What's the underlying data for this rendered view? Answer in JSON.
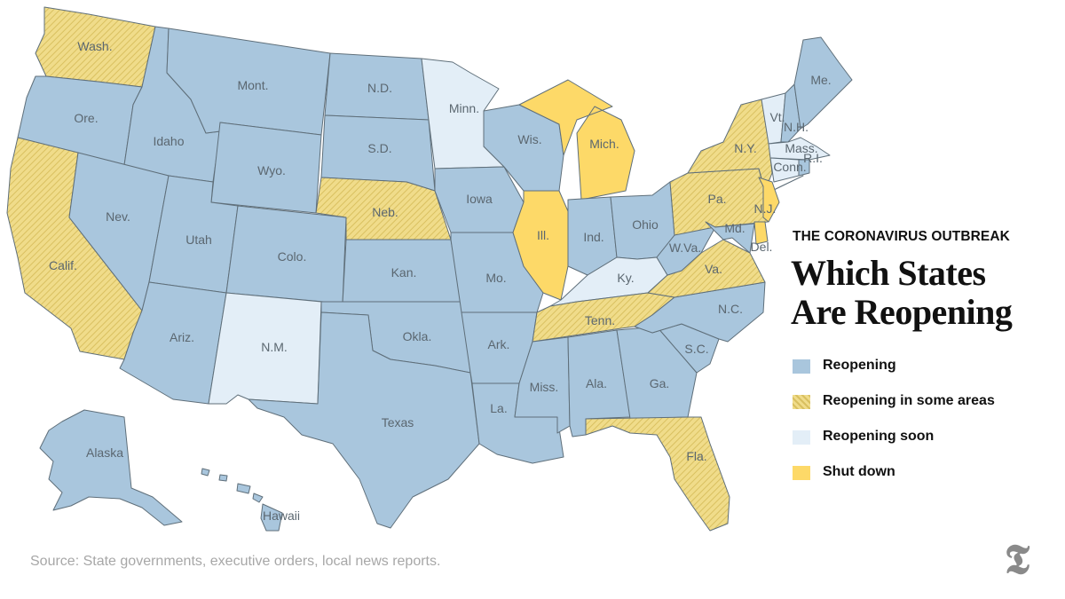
{
  "header": {
    "kicker": "THE CORONAVIRUS OUTBREAK",
    "title_line1": "Which States",
    "title_line2": "Are Reopening"
  },
  "legend": {
    "reopening": "Reopening",
    "some": "Reopening in some areas",
    "soon": "Reopening soon",
    "shut": "Shut down"
  },
  "colors": {
    "reopening": "#a9c6dd",
    "some": "#f0dc8a",
    "some_hatch": "#d9c060",
    "soon": "#e3eef7",
    "shut": "#fdd968",
    "border": "#5f6f7a"
  },
  "states": {
    "wa": {
      "label": "Wash.",
      "status": "some"
    },
    "or": {
      "label": "Ore.",
      "status": "reopening"
    },
    "ca": {
      "label": "Calif.",
      "status": "some"
    },
    "id": {
      "label": "Idaho",
      "status": "reopening"
    },
    "nv": {
      "label": "Nev.",
      "status": "reopening"
    },
    "mt": {
      "label": "Mont.",
      "status": "reopening"
    },
    "wy": {
      "label": "Wyo.",
      "status": "reopening"
    },
    "ut": {
      "label": "Utah",
      "status": "reopening"
    },
    "az": {
      "label": "Ariz.",
      "status": "reopening"
    },
    "co": {
      "label": "Colo.",
      "status": "reopening"
    },
    "nm": {
      "label": "N.M.",
      "status": "soon"
    },
    "nd": {
      "label": "N.D.",
      "status": "reopening"
    },
    "sd": {
      "label": "S.D.",
      "status": "reopening"
    },
    "ne": {
      "label": "Neb.",
      "status": "some"
    },
    "ks": {
      "label": "Kan.",
      "status": "reopening"
    },
    "ok": {
      "label": "Okla.",
      "status": "reopening"
    },
    "tx": {
      "label": "Texas",
      "status": "reopening"
    },
    "mn": {
      "label": "Minn.",
      "status": "soon"
    },
    "ia": {
      "label": "Iowa",
      "status": "reopening"
    },
    "mo": {
      "label": "Mo.",
      "status": "reopening"
    },
    "ar": {
      "label": "Ark.",
      "status": "reopening"
    },
    "la": {
      "label": "La.",
      "status": "reopening"
    },
    "wi": {
      "label": "Wis.",
      "status": "reopening"
    },
    "il": {
      "label": "Ill.",
      "status": "shut"
    },
    "mi": {
      "label": "Mich.",
      "status": "shut"
    },
    "in": {
      "label": "Ind.",
      "status": "reopening"
    },
    "oh": {
      "label": "Ohio",
      "status": "reopening"
    },
    "ky": {
      "label": "Ky.",
      "status": "soon"
    },
    "tn": {
      "label": "Tenn.",
      "status": "some"
    },
    "ms": {
      "label": "Miss.",
      "status": "reopening"
    },
    "al": {
      "label": "Ala.",
      "status": "reopening"
    },
    "ga": {
      "label": "Ga.",
      "status": "reopening"
    },
    "fl": {
      "label": "Fla.",
      "status": "some"
    },
    "sc": {
      "label": "S.C.",
      "status": "reopening"
    },
    "nc": {
      "label": "N.C.",
      "status": "reopening"
    },
    "va": {
      "label": "Va.",
      "status": "some"
    },
    "wv": {
      "label": "W.Va.",
      "status": "reopening"
    },
    "pa": {
      "label": "Pa.",
      "status": "some"
    },
    "ny": {
      "label": "N.Y.",
      "status": "some"
    },
    "nj": {
      "label": "N.J.",
      "status": "shut"
    },
    "md": {
      "label": "Md.",
      "status": "reopening"
    },
    "de": {
      "label": "Del.",
      "status": "shut"
    },
    "me": {
      "label": "Me.",
      "status": "reopening"
    },
    "vt": {
      "label": "Vt.",
      "status": "soon"
    },
    "nh": {
      "label": "N.H.",
      "status": "reopening"
    },
    "ma": {
      "label": "Mass.",
      "status": "soon"
    },
    "ct": {
      "label": "Conn.",
      "status": "soon"
    },
    "ri": {
      "label": "R.I.",
      "status": "reopening"
    },
    "ak": {
      "label": "Alaska",
      "status": "reopening"
    },
    "hi": {
      "label": "Hawaii",
      "status": "reopening"
    }
  },
  "source": "Source: State governments, executive orders, local news reports."
}
